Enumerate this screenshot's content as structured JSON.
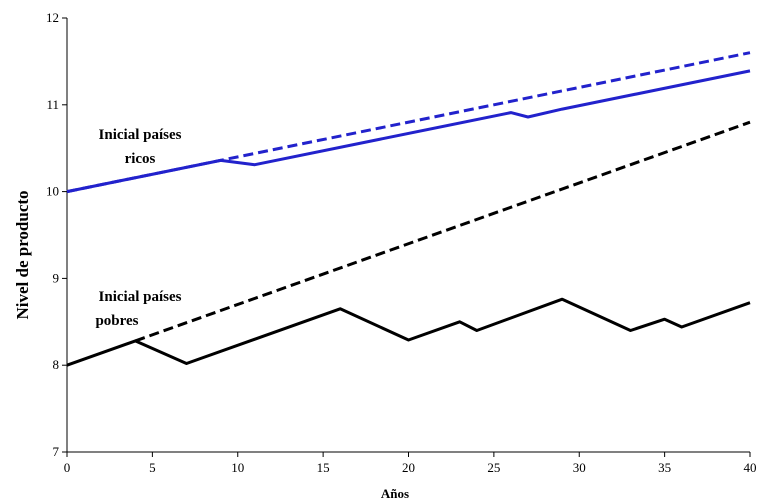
{
  "chart_data": {
    "type": "line",
    "title": "",
    "xlabel": "Años",
    "ylabel": "Nivel de producto",
    "xlim": [
      0,
      40
    ],
    "ylim": [
      7,
      12
    ],
    "xticks": [
      0,
      5,
      10,
      15,
      20,
      25,
      30,
      35,
      40
    ],
    "yticks": [
      7,
      8,
      9,
      10,
      11,
      12
    ],
    "grid": false,
    "legend": "none",
    "annotations": [
      {
        "lines": [
          "Inicial países",
          "ricos"
        ]
      },
      {
        "lines": [
          "Inicial países",
          "pobres"
        ]
      }
    ],
    "series": [
      {
        "color": "#2222cc",
        "dash": true,
        "x": [
          0,
          40
        ],
        "y": [
          10.0,
          11.6
        ]
      },
      {
        "color": "#2222cc",
        "dash": false,
        "x": [
          0,
          9,
          11,
          26,
          27,
          29,
          40
        ],
        "y": [
          10.0,
          10.36,
          10.31,
          10.91,
          10.86,
          10.95,
          11.39
        ]
      },
      {
        "color": "#000000",
        "dash": true,
        "x": [
          4,
          40
        ],
        "y": [
          8.28,
          10.8
        ]
      },
      {
        "color": "#000000",
        "dash": false,
        "x": [
          0,
          4,
          7,
          16,
          20,
          23,
          24,
          29,
          33,
          35,
          36,
          40
        ],
        "y": [
          8.0,
          8.28,
          8.02,
          8.65,
          8.29,
          8.5,
          8.4,
          8.76,
          8.4,
          8.53,
          8.44,
          8.72
        ]
      }
    ]
  }
}
